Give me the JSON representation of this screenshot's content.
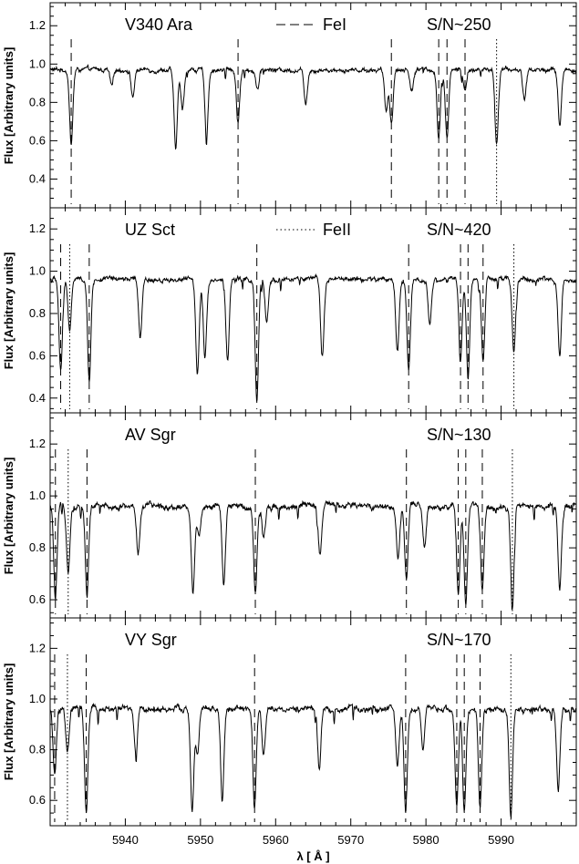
{
  "chart_data": {
    "type": "line",
    "x_label": "λ [ Å ]",
    "y_label": "Flux [Arbitrary units]",
    "xlim": [
      5930,
      6000
    ],
    "x_ticks": [
      5940,
      5950,
      5960,
      5970,
      5980,
      5990
    ],
    "legend_entries": [
      {
        "panel": 0,
        "label": "FeI",
        "linestyle": "dashed"
      },
      {
        "panel": 1,
        "label": "FeII",
        "linestyle": "dotted"
      }
    ],
    "panels": [
      {
        "star": "V340 Ara",
        "snr": "S/N~250",
        "ylim": [
          0.25,
          1.32
        ],
        "y_ticks": [
          0.4,
          0.6,
          0.8,
          1.0,
          1.2
        ],
        "continuum": 0.97,
        "FeI_lines": [
          5932.8,
          5955.0,
          5975.4,
          5981.7,
          5982.8,
          5985.2
        ],
        "FeII_lines": [
          5989.4
        ],
        "absorption": [
          [
            5932.8,
            0.58
          ],
          [
            5938.2,
            0.88
          ],
          [
            5941.0,
            0.83
          ],
          [
            5946.7,
            0.56
          ],
          [
            5947.6,
            0.76
          ],
          [
            5950.8,
            0.63
          ],
          [
            5955.0,
            0.7
          ],
          [
            5957.6,
            0.87
          ],
          [
            5964.0,
            0.8
          ],
          [
            5974.7,
            0.75
          ],
          [
            5975.4,
            0.7
          ],
          [
            5978.1,
            0.86
          ],
          [
            5981.7,
            0.62
          ],
          [
            5982.8,
            0.62
          ],
          [
            5985.2,
            0.86
          ],
          [
            5989.4,
            0.59
          ],
          [
            5993.1,
            0.82
          ],
          [
            5997.8,
            0.68
          ]
        ]
      },
      {
        "star": "UZ Sct",
        "snr": "S/N~420",
        "ylim": [
          0.33,
          1.3
        ],
        "y_ticks": [
          0.4,
          0.6,
          0.8,
          1.0,
          1.2
        ],
        "continuum": 0.96,
        "FeI_lines": [
          5931.4,
          5935.2,
          5957.5,
          5977.7,
          5984.6,
          5985.6,
          5987.6
        ],
        "FeII_lines": [
          5932.6,
          5991.7
        ],
        "absorption": [
          [
            5931.4,
            0.52
          ],
          [
            5932.6,
            0.72
          ],
          [
            5935.2,
            0.48
          ],
          [
            5942.0,
            0.68
          ],
          [
            5949.6,
            0.52
          ],
          [
            5950.6,
            0.6
          ],
          [
            5953.6,
            0.58
          ],
          [
            5957.5,
            0.38
          ],
          [
            5958.8,
            0.75
          ],
          [
            5966.2,
            0.6
          ],
          [
            5976.2,
            0.62
          ],
          [
            5977.7,
            0.53
          ],
          [
            5980.5,
            0.75
          ],
          [
            5984.6,
            0.58
          ],
          [
            5985.6,
            0.5
          ],
          [
            5987.6,
            0.58
          ],
          [
            5991.7,
            0.62
          ],
          [
            5997.8,
            0.58
          ]
        ]
      },
      {
        "star": "AV Sgr",
        "snr": "S/N~130",
        "ylim": [
          0.53,
          1.32
        ],
        "y_ticks": [
          0.6,
          0.8,
          1.0,
          1.2
        ],
        "continuum": 0.96,
        "FeI_lines": [
          5930.7,
          5934.9,
          5957.3,
          5977.4,
          5984.3,
          5985.3,
          5987.5
        ],
        "FeII_lines": [
          5932.4,
          5991.5
        ],
        "absorption": [
          [
            5930.7,
            0.6
          ],
          [
            5932.4,
            0.72
          ],
          [
            5934.9,
            0.62
          ],
          [
            5941.7,
            0.78
          ],
          [
            5949.0,
            0.62
          ],
          [
            5949.8,
            0.85
          ],
          [
            5953.1,
            0.65
          ],
          [
            5957.3,
            0.63
          ],
          [
            5958.4,
            0.83
          ],
          [
            5965.9,
            0.78
          ],
          [
            5976.3,
            0.76
          ],
          [
            5977.4,
            0.68
          ],
          [
            5979.8,
            0.8
          ],
          [
            5984.3,
            0.62
          ],
          [
            5985.3,
            0.58
          ],
          [
            5987.5,
            0.64
          ],
          [
            5991.5,
            0.57
          ],
          [
            5997.8,
            0.64
          ]
        ]
      },
      {
        "star": "VY Sgr",
        "snr": "S/N~170",
        "ylim": [
          0.5,
          1.32
        ],
        "y_ticks": [
          0.6,
          0.8,
          1.0,
          1.2
        ],
        "continuum": 0.96,
        "FeI_lines": [
          5930.6,
          5934.8,
          5957.2,
          5977.3,
          5984.1,
          5985.1,
          5987.2
        ],
        "FeII_lines": [
          5932.3,
          5991.3
        ],
        "absorption": [
          [
            5930.6,
            0.7
          ],
          [
            5932.3,
            0.78
          ],
          [
            5934.8,
            0.55
          ],
          [
            5941.4,
            0.78
          ],
          [
            5948.9,
            0.56
          ],
          [
            5949.6,
            0.78
          ],
          [
            5952.9,
            0.6
          ],
          [
            5957.2,
            0.56
          ],
          [
            5958.4,
            0.78
          ],
          [
            5965.8,
            0.72
          ],
          [
            5976.2,
            0.74
          ],
          [
            5977.3,
            0.57
          ],
          [
            5979.6,
            0.79
          ],
          [
            5984.1,
            0.58
          ],
          [
            5985.1,
            0.55
          ],
          [
            5987.2,
            0.57
          ],
          [
            5991.3,
            0.52
          ],
          [
            5997.6,
            0.64
          ]
        ]
      }
    ]
  }
}
